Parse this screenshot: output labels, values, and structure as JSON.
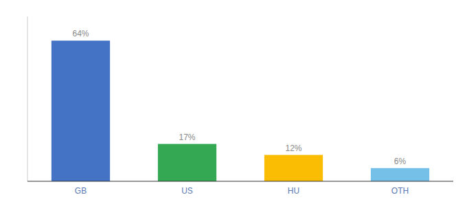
{
  "chart_data": {
    "type": "bar",
    "categories": [
      "GB",
      "US",
      "HU",
      "OTH"
    ],
    "values": [
      64,
      17,
      12,
      6
    ],
    "value_labels": [
      "64%",
      "17%",
      "12%",
      "6%"
    ],
    "data_labels": true,
    "colors": [
      "#4472C4",
      "#34A853",
      "#FBBC04",
      "#74C0E8"
    ],
    "ylim": [
      0,
      75
    ],
    "tick_labels": "x"
  }
}
